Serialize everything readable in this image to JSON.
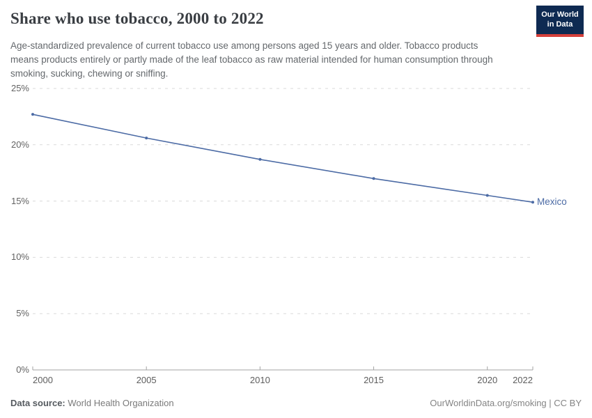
{
  "header": {
    "title": "Share who use tobacco, 2000 to 2022",
    "subtitle": "Age-standardized prevalence of current tobacco use among persons aged 15 years and older. Tobacco products means products entirely or partly made of the leaf tobacco as raw material intended for human consumption through smoking, sucking, chewing or sniffing.",
    "logo": {
      "line1": "Our World",
      "line2": "in Data"
    }
  },
  "chart_data": {
    "type": "line",
    "title": "Share who use tobacco, 2000 to 2022",
    "x": [
      2000,
      2005,
      2010,
      2015,
      2020,
      2022
    ],
    "series": [
      {
        "name": "Mexico",
        "values": [
          22.7,
          20.6,
          18.7,
          17.0,
          15.5,
          14.9
        ],
        "color": "#4c6ba5"
      }
    ],
    "xlabel": "",
    "ylabel": "",
    "xlim": [
      2000,
      2022
    ],
    "ylim": [
      0,
      25
    ],
    "x_ticks": [
      2000,
      2005,
      2010,
      2015,
      2020,
      2022
    ],
    "y_ticks": [
      0,
      5,
      10,
      15,
      20,
      25
    ],
    "y_tick_suffix": "%",
    "grid": "horizontal-dashed",
    "legend_position": "line-end-label"
  },
  "footer": {
    "source_label": "Data source:",
    "source_value": "World Health Organization",
    "license": "OurWorldinData.org/smoking | CC BY"
  },
  "colors": {
    "line": "#4c6ba5",
    "grid": "#dadada",
    "axis": "#a3a3a3",
    "logo_bg": "#0e2a52",
    "logo_accent": "#d5403b"
  }
}
